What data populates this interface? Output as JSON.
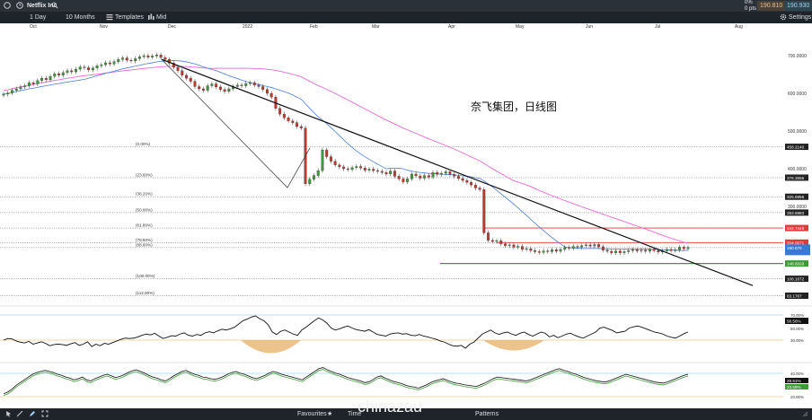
{
  "header": {
    "symbol": "Netflix Inc",
    "change": "0%",
    "change_pts": "0 pts",
    "sell": "190.810",
    "buy": "190.930"
  },
  "toolbar": {
    "interval": "1 Day",
    "range": "10 Months",
    "templates": "Templates",
    "price_type": "Mid",
    "settings": "Settings"
  },
  "bottombar": {
    "favourites": "Favourites",
    "timeline": "Time",
    "patterns": "Patterns",
    "watermark": "chinazau"
  },
  "chart_data": {
    "type": "candlestick",
    "annotation": "奈飞集团，日线图",
    "x_ticks": [
      "Oct",
      "Nov",
      "Dec",
      "2022",
      "Feb",
      "Mar",
      "Apr",
      "May",
      "Jun",
      "Jul",
      "Aug"
    ],
    "y_ticks": [
      700,
      600,
      500,
      400,
      300
    ],
    "ylim": [
      80,
      730
    ],
    "fib_levels": [
      {
        "label": "(0.00%)",
        "value": 458.214
      },
      {
        "label": "(23.60%)",
        "value": 376.3556
      },
      {
        "label": "(38.20%)",
        "value": 325.6956
      },
      {
        "label": "(50.00%)",
        "value": 283.6883
      },
      {
        "label": "(61.80%)",
        "value": 242.7449
      },
      {
        "label": "(78.60%)",
        "value": 204.0571
      },
      {
        "label": "(88.60%)",
        "value": 190.87
      },
      {
        "label": "(100.00%)",
        "value": 108.1672
      },
      {
        "label": "(112.60%)",
        "value": 63.1767
      }
    ],
    "price_labels": [
      {
        "text": "458.2140",
        "value": 458.214,
        "color": "#222222"
      },
      {
        "text": "376.3556",
        "value": 376.3556,
        "color": "#222222"
      },
      {
        "text": "325.6956",
        "value": 325.6956,
        "color": "#222222"
      },
      {
        "text": "283.6883",
        "value": 283.6883,
        "color": "#222222"
      },
      {
        "text": "242.7449",
        "value": 242.7449,
        "color": "#e03a3a"
      },
      {
        "text": "204.0571",
        "value": 204.0571,
        "color": "#e03a3a"
      },
      {
        "text": "190.870",
        "value": 190.87,
        "color": "#3a78d6"
      },
      {
        "text": "148.6029",
        "value": 148.6029,
        "color": "#3d9b35"
      },
      {
        "text": "108.1672",
        "value": 108.1672,
        "color": "#222222"
      },
      {
        "text": "63.1767",
        "value": 63.1767,
        "color": "#222222"
      }
    ],
    "closes": [
      598,
      601,
      608,
      612,
      617,
      620,
      628,
      625,
      634,
      640,
      636,
      645,
      652,
      648,
      655,
      660,
      657,
      664,
      670,
      668,
      662,
      667,
      673,
      676,
      681,
      678,
      684,
      690,
      694,
      688,
      686,
      692,
      697,
      700,
      696,
      699,
      702,
      695,
      690,
      680,
      669,
      660,
      648,
      640,
      632,
      618,
      612,
      608,
      620,
      625,
      617,
      610,
      605,
      612,
      618,
      622,
      620,
      626,
      628,
      622,
      618,
      610,
      600,
      590,
      560,
      545,
      535,
      527,
      522,
      512,
      508,
      360,
      372,
      382,
      395,
      450,
      432,
      420,
      410,
      405,
      400,
      398,
      403,
      406,
      402,
      396,
      399,
      395,
      393,
      390,
      386,
      394,
      380,
      373,
      365,
      373,
      386,
      381,
      375,
      382,
      378,
      390,
      385,
      388,
      392,
      385,
      380,
      374,
      369,
      364,
      357,
      349,
      345,
      230,
      210,
      207,
      209,
      201,
      196,
      198,
      192,
      194,
      186,
      188,
      183,
      180,
      178,
      182,
      180,
      185,
      181,
      186,
      191,
      189,
      194,
      192,
      196,
      198,
      195,
      199,
      193,
      184,
      181,
      177,
      182,
      177,
      180,
      183,
      185,
      182,
      184,
      181,
      186,
      183,
      179,
      182,
      186,
      183,
      185,
      192,
      188,
      191
    ],
    "rsi": [
      40,
      44,
      43,
      38,
      35,
      33,
      37,
      30,
      33,
      36,
      32,
      26,
      29,
      30,
      29,
      27,
      31,
      34,
      27,
      30,
      36,
      24,
      30,
      26,
      32,
      30,
      34,
      38,
      42,
      45,
      44,
      45,
      48,
      52,
      55,
      53,
      57,
      50,
      44,
      47,
      51,
      50,
      55,
      58,
      52,
      50,
      54,
      52,
      58,
      61,
      58,
      63,
      67,
      65,
      68,
      72,
      80,
      88,
      92,
      97,
      100,
      93,
      88,
      78,
      60,
      54,
      62,
      65,
      60,
      55,
      52,
      65,
      72,
      80,
      88,
      95,
      90,
      82,
      70,
      65,
      68,
      72,
      75,
      70,
      66,
      64,
      62,
      66,
      60,
      54,
      52,
      50,
      55,
      57,
      58,
      55,
      56,
      52,
      51,
      54,
      50,
      48,
      45,
      42,
      38,
      35,
      30,
      26,
      25,
      27,
      20,
      30,
      35,
      45,
      55,
      60,
      65,
      58,
      54,
      58,
      60,
      55,
      52,
      57,
      60,
      54,
      50,
      55,
      60,
      57,
      48,
      52,
      46,
      50,
      55,
      57,
      52,
      48,
      45,
      50,
      55,
      60,
      70,
      72,
      68,
      64,
      58,
      60,
      62,
      70,
      73,
      75,
      72,
      68,
      64,
      60,
      58,
      55,
      50,
      47,
      45,
      50,
      56,
      60
    ],
    "stoch": [
      15,
      18,
      23,
      30,
      35,
      40,
      45,
      50,
      53,
      55,
      57,
      55,
      53,
      50,
      48,
      45,
      43,
      40,
      42,
      45,
      40,
      38,
      42,
      45,
      48,
      50,
      47,
      44,
      46,
      49,
      53,
      56,
      58,
      55,
      52,
      48,
      45,
      43,
      40,
      38,
      42,
      47,
      51,
      55,
      57,
      53,
      50,
      48,
      45,
      44,
      42,
      41,
      43,
      46,
      50,
      53,
      55,
      52,
      50,
      47,
      44,
      42,
      45,
      48,
      52,
      55,
      53,
      50,
      48,
      46,
      44,
      42,
      40,
      45,
      50,
      55,
      60,
      62,
      58,
      55,
      52,
      50,
      47,
      44,
      42,
      40,
      38,
      35,
      36,
      40,
      45,
      47,
      43,
      40,
      37,
      35,
      33,
      30,
      28,
      27,
      25,
      28,
      31,
      35,
      38,
      40,
      42,
      39,
      36,
      34,
      33,
      31,
      30,
      29,
      28,
      31,
      34,
      38,
      42,
      45,
      44,
      43,
      42,
      41,
      40,
      39,
      38,
      40,
      43,
      46,
      49,
      52,
      55,
      58,
      60,
      57,
      55,
      52,
      50,
      47,
      44,
      42,
      40,
      38,
      37,
      36,
      38,
      41,
      44,
      47,
      50,
      48,
      46,
      44,
      42,
      40,
      38,
      36,
      35,
      34,
      36,
      39,
      42,
      45,
      48,
      50
    ],
    "rsi_label": "58.56%",
    "stoch_label": "29.51%",
    "stoch_label2": "23.58%",
    "ind_ticks_rsi": [
      "70.00%",
      "50.00%",
      "30.00%"
    ],
    "ind_ticks_stoch": [
      "40.00%",
      "20.00%"
    ]
  }
}
